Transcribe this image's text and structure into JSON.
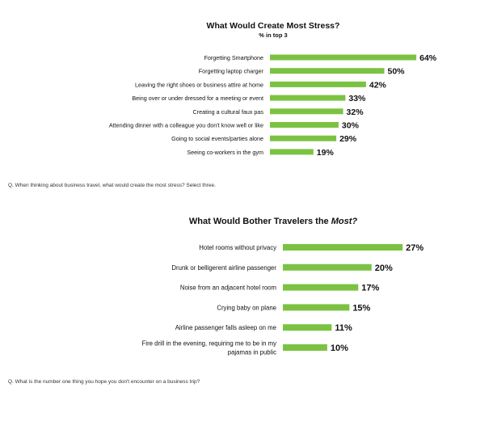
{
  "chart_data": [
    {
      "type": "bar",
      "orientation": "horizontal",
      "title": "What Would Create Most Stress?",
      "subtitle": "% in top 3",
      "categories": [
        "Forgetting Smartphone",
        "Forgetting laptop charger",
        "Leaving the right shoes or business attire at home",
        "Being over or under dressed for a meeting or event",
        "Creating a cultural faux pas",
        "Attending dinner with a colleague you don't know well or like",
        "Going to social events/parties alone",
        "Seeing co-workers in the gym"
      ],
      "values": [
        64,
        50,
        42,
        33,
        32,
        30,
        29,
        19
      ],
      "value_labels": [
        "64%",
        "50%",
        "42%",
        "33%",
        "32%",
        "30%",
        "29%",
        "19%"
      ],
      "unit": "%",
      "xlim": [
        0,
        100
      ],
      "bar_color": "#7cc242",
      "grid": false,
      "legend": "none",
      "footnote": "Q. When thinking about business travel, what would create the most stress? Select three."
    },
    {
      "type": "bar",
      "orientation": "horizontal",
      "title_prefix": "What Would Bother Travelers the ",
      "title_emphasis": "Most?",
      "categories": [
        [
          "Hotel rooms without privacy"
        ],
        [
          "Drunk or belligerent airline passenger"
        ],
        [
          "Noise from an adjacent hotel room"
        ],
        [
          "Crying baby on plane"
        ],
        [
          "Airline passenger falls asleep on me"
        ],
        [
          "Fire drill in the evening, requiring me to be in my",
          "pajamas in public"
        ]
      ],
      "values": [
        27,
        20,
        17,
        15,
        11,
        10
      ],
      "value_labels": [
        "27%",
        "20%",
        "17%",
        "15%",
        "11%",
        "10%"
      ],
      "unit": "%",
      "xlim": [
        0,
        41
      ],
      "bar_color": "#7cc242",
      "grid": false,
      "legend": "none",
      "footnote": "Q. What is the number one thing you hope you don't encounter on a business trip?"
    }
  ]
}
